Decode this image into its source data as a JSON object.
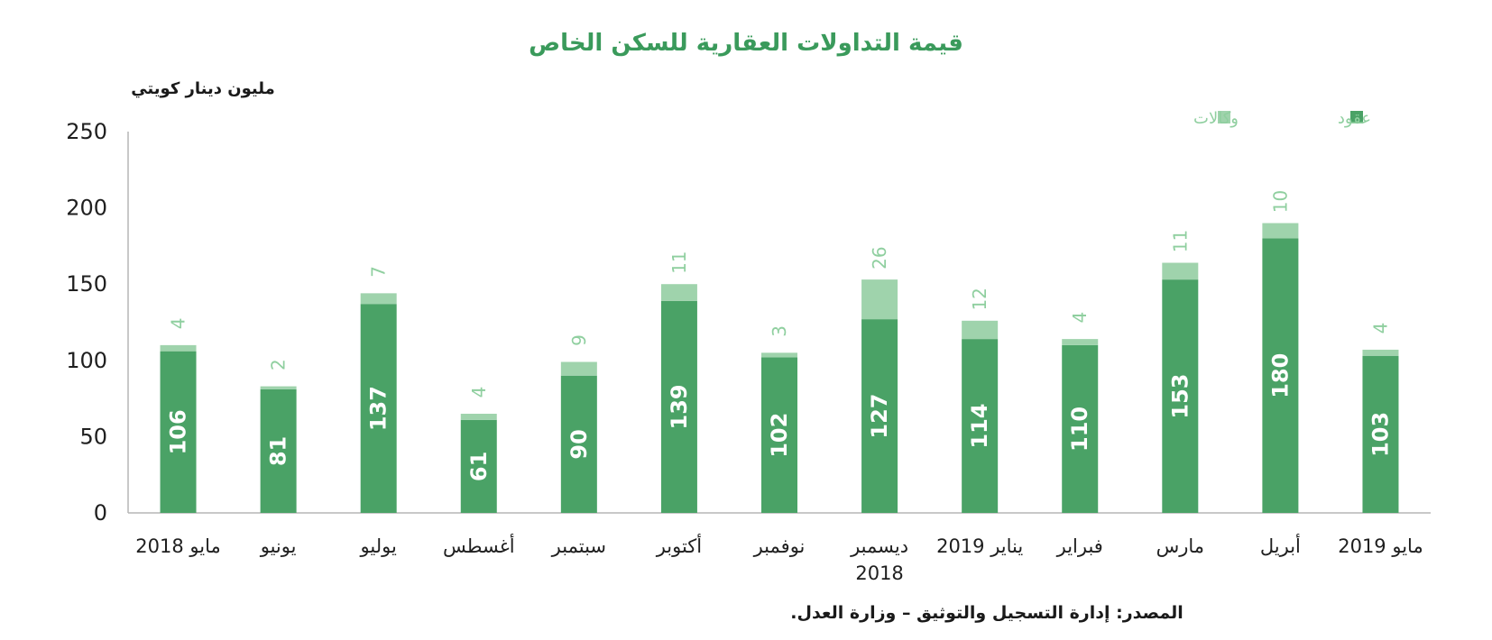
{
  "chart_data": {
    "type": "bar",
    "stacked": true,
    "title": "قيمة التداولات العقارية للسكن الخاص",
    "ylabel": "مليون دينار كويتي",
    "xlabel": "",
    "ylim": [
      0,
      250
    ],
    "y_ticks": [
      "0",
      "50",
      "100",
      "150",
      "200",
      "250"
    ],
    "categories": [
      [
        "مايو 2018"
      ],
      [
        "يونيو"
      ],
      [
        "يوليو"
      ],
      [
        "أغسطس"
      ],
      [
        "سبتمبر"
      ],
      [
        "أكتوبر"
      ],
      [
        "نوفمبر"
      ],
      [
        "ديسمبر",
        "2018"
      ],
      [
        "يناير 2019"
      ],
      [
        "فبراير"
      ],
      [
        "مارس"
      ],
      [
        "أبريل"
      ],
      [
        "مايو 2019"
      ]
    ],
    "series": [
      {
        "name": "عقود",
        "color": "#4aa266",
        "values": [
          106,
          81,
          137,
          61,
          90,
          139,
          102,
          127,
          114,
          110,
          153,
          180,
          103
        ]
      },
      {
        "name": "وكالات",
        "color": "#9fd3ac",
        "values": [
          4,
          2,
          7,
          4,
          9,
          11,
          3,
          26,
          12,
          4,
          11,
          10,
          4
        ]
      }
    ],
    "legend_position": "top-right",
    "grid": false
  },
  "source_note": "المصدر: إدارة التسجيل والتوثيق – وزارة العدل."
}
